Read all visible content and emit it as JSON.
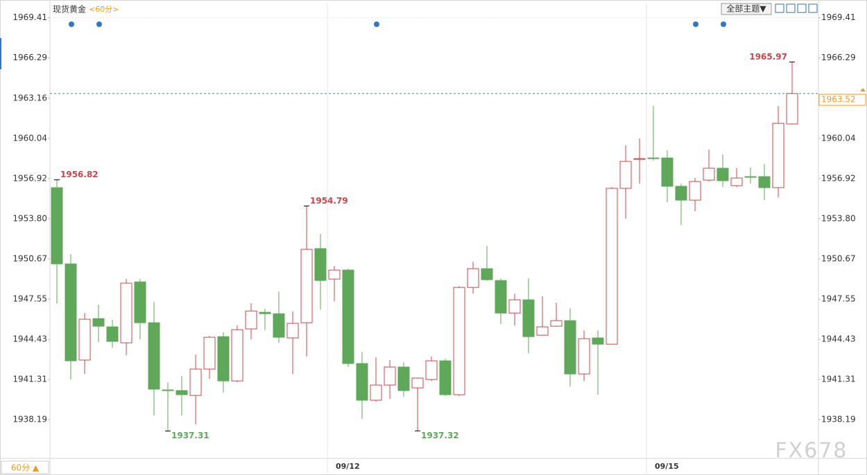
{
  "chart_data": {
    "type": "candlestick",
    "title": "现货黄金",
    "subtitle": "<60分>",
    "theme_menu": "全部主题▼",
    "period_button": "60分 ▲",
    "watermark": "FX678",
    "categories": [
      null,
      null,
      null,
      null,
      null,
      null,
      null,
      null,
      null,
      null,
      null,
      null,
      null,
      null,
      null,
      null,
      null,
      null,
      null,
      null,
      "09/12",
      null,
      null,
      null,
      null,
      null,
      null,
      null,
      null,
      null,
      null,
      null,
      null,
      null,
      null,
      null,
      null,
      null,
      null,
      null,
      null,
      null,
      null,
      "09/15",
      null,
      null,
      null,
      null,
      null,
      null,
      null,
      null,
      null,
      null
    ],
    "open": [
      1956.21,
      1950.29,
      1942.82,
      1946.04,
      1945.4,
      1944.16,
      1948.89,
      1945.72,
      1940.5,
      1940.45,
      1940.07,
      1942.12,
      1944.64,
      1941.2,
      1945.24,
      1946.53,
      1946.42,
      1944.54,
      1945.72,
      1951.48,
      1949.11,
      1949.81,
      1942.55,
      1939.7,
      1940.88,
      1942.28,
      1940.66,
      1941.31,
      1942.76,
      1940.13,
      1948.46,
      1949.92,
      1949.0,
      1946.47,
      1947.5,
      1944.75,
      1945.45,
      1945.88,
      1941.74,
      1944.54,
      1944.05,
      1956.16,
      1958.41,
      1958.52,
      1958.52,
      1956.32,
      1955.24,
      1956.8,
      1957.72,
      1956.37,
      1957.07,
      1957.07,
      1956.21,
      1961.16
    ],
    "close": [
      1950.29,
      1942.76,
      1945.99,
      1945.45,
      1944.27,
      1948.79,
      1945.72,
      1940.56,
      1940.45,
      1940.13,
      1942.12,
      1944.59,
      1941.2,
      1945.18,
      1946.63,
      1946.42,
      1944.59,
      1945.67,
      1951.42,
      1949.0,
      1949.81,
      1942.55,
      1939.7,
      1940.88,
      1942.28,
      1940.45,
      1941.42,
      1942.76,
      1940.13,
      1948.46,
      1949.92,
      1949.06,
      1946.47,
      1947.5,
      1944.64,
      1945.4,
      1945.88,
      1941.74,
      1944.48,
      1944.05,
      1956.16,
      1958.25,
      1958.47,
      1958.47,
      1956.32,
      1955.24,
      1956.69,
      1957.72,
      1956.75,
      1956.96,
      1957.02,
      1956.21,
      1961.21,
      1963.52
    ],
    "high": [
      1956.82,
      1951.05,
      1946.47,
      1947.12,
      1945.94,
      1949.11,
      1949.11,
      1947.33,
      1941.09,
      1941.58,
      1943.25,
      1944.7,
      1944.97,
      1945.51,
      1947.23,
      1946.8,
      1948.14,
      1946.58,
      1954.79,
      1952.61,
      1950.13,
      1949.92,
      1943.46,
      1943.03,
      1942.82,
      1942.65,
      1941.47,
      1943.09,
      1942.92,
      1948.57,
      1950.45,
      1951.69,
      1949.16,
      1947.98,
      1949.16,
      1947.76,
      1947.28,
      1946.85,
      1945.13,
      1945.13,
      1956.26,
      1959.49,
      1960.03,
      1962.56,
      1959.11,
      1956.53,
      1956.96,
      1959.17,
      1958.79,
      1957.72,
      1957.77,
      1958.04,
      1962.56,
      1965.97
    ],
    "low": [
      1947.23,
      1941.31,
      1941.74,
      1944.21,
      1943.78,
      1943.19,
      1944.43,
      1938.51,
      1937.31,
      1938.51,
      1937.81,
      1941.36,
      1940.29,
      1941.09,
      1944.43,
      1945.13,
      1944.16,
      1941.74,
      1943.09,
      1946.74,
      1947.39,
      1942.28,
      1938.24,
      1939.59,
      1939.8,
      1939.97,
      1937.32,
      1941.2,
      1940.02,
      1940.02,
      1947.98,
      1949.0,
      1945.61,
      1945.51,
      1943.35,
      1944.75,
      1945.4,
      1940.77,
      1941.2,
      1940.13,
      1944.05,
      1953.79,
      1956.53,
      1958.31,
      1955.08,
      1953.3,
      1954.38,
      1956.69,
      1956.26,
      1956.26,
      1956.53,
      1955.24,
      1955.46,
      1961.1
    ],
    "up_color": "#c8474a",
    "down_color": "#5fa85a",
    "last_color": "#f39a1e",
    "ylim": [
      1935.29,
      1970.52
    ],
    "yticks": [
      1938.19,
      1941.31,
      1944.43,
      1947.55,
      1950.67,
      {
        "value": 1953.8,
        "label": "1953.80"
      },
      1956.92,
      1960.04,
      1963.16,
      1966.29,
      1969.41
    ]
  }
}
